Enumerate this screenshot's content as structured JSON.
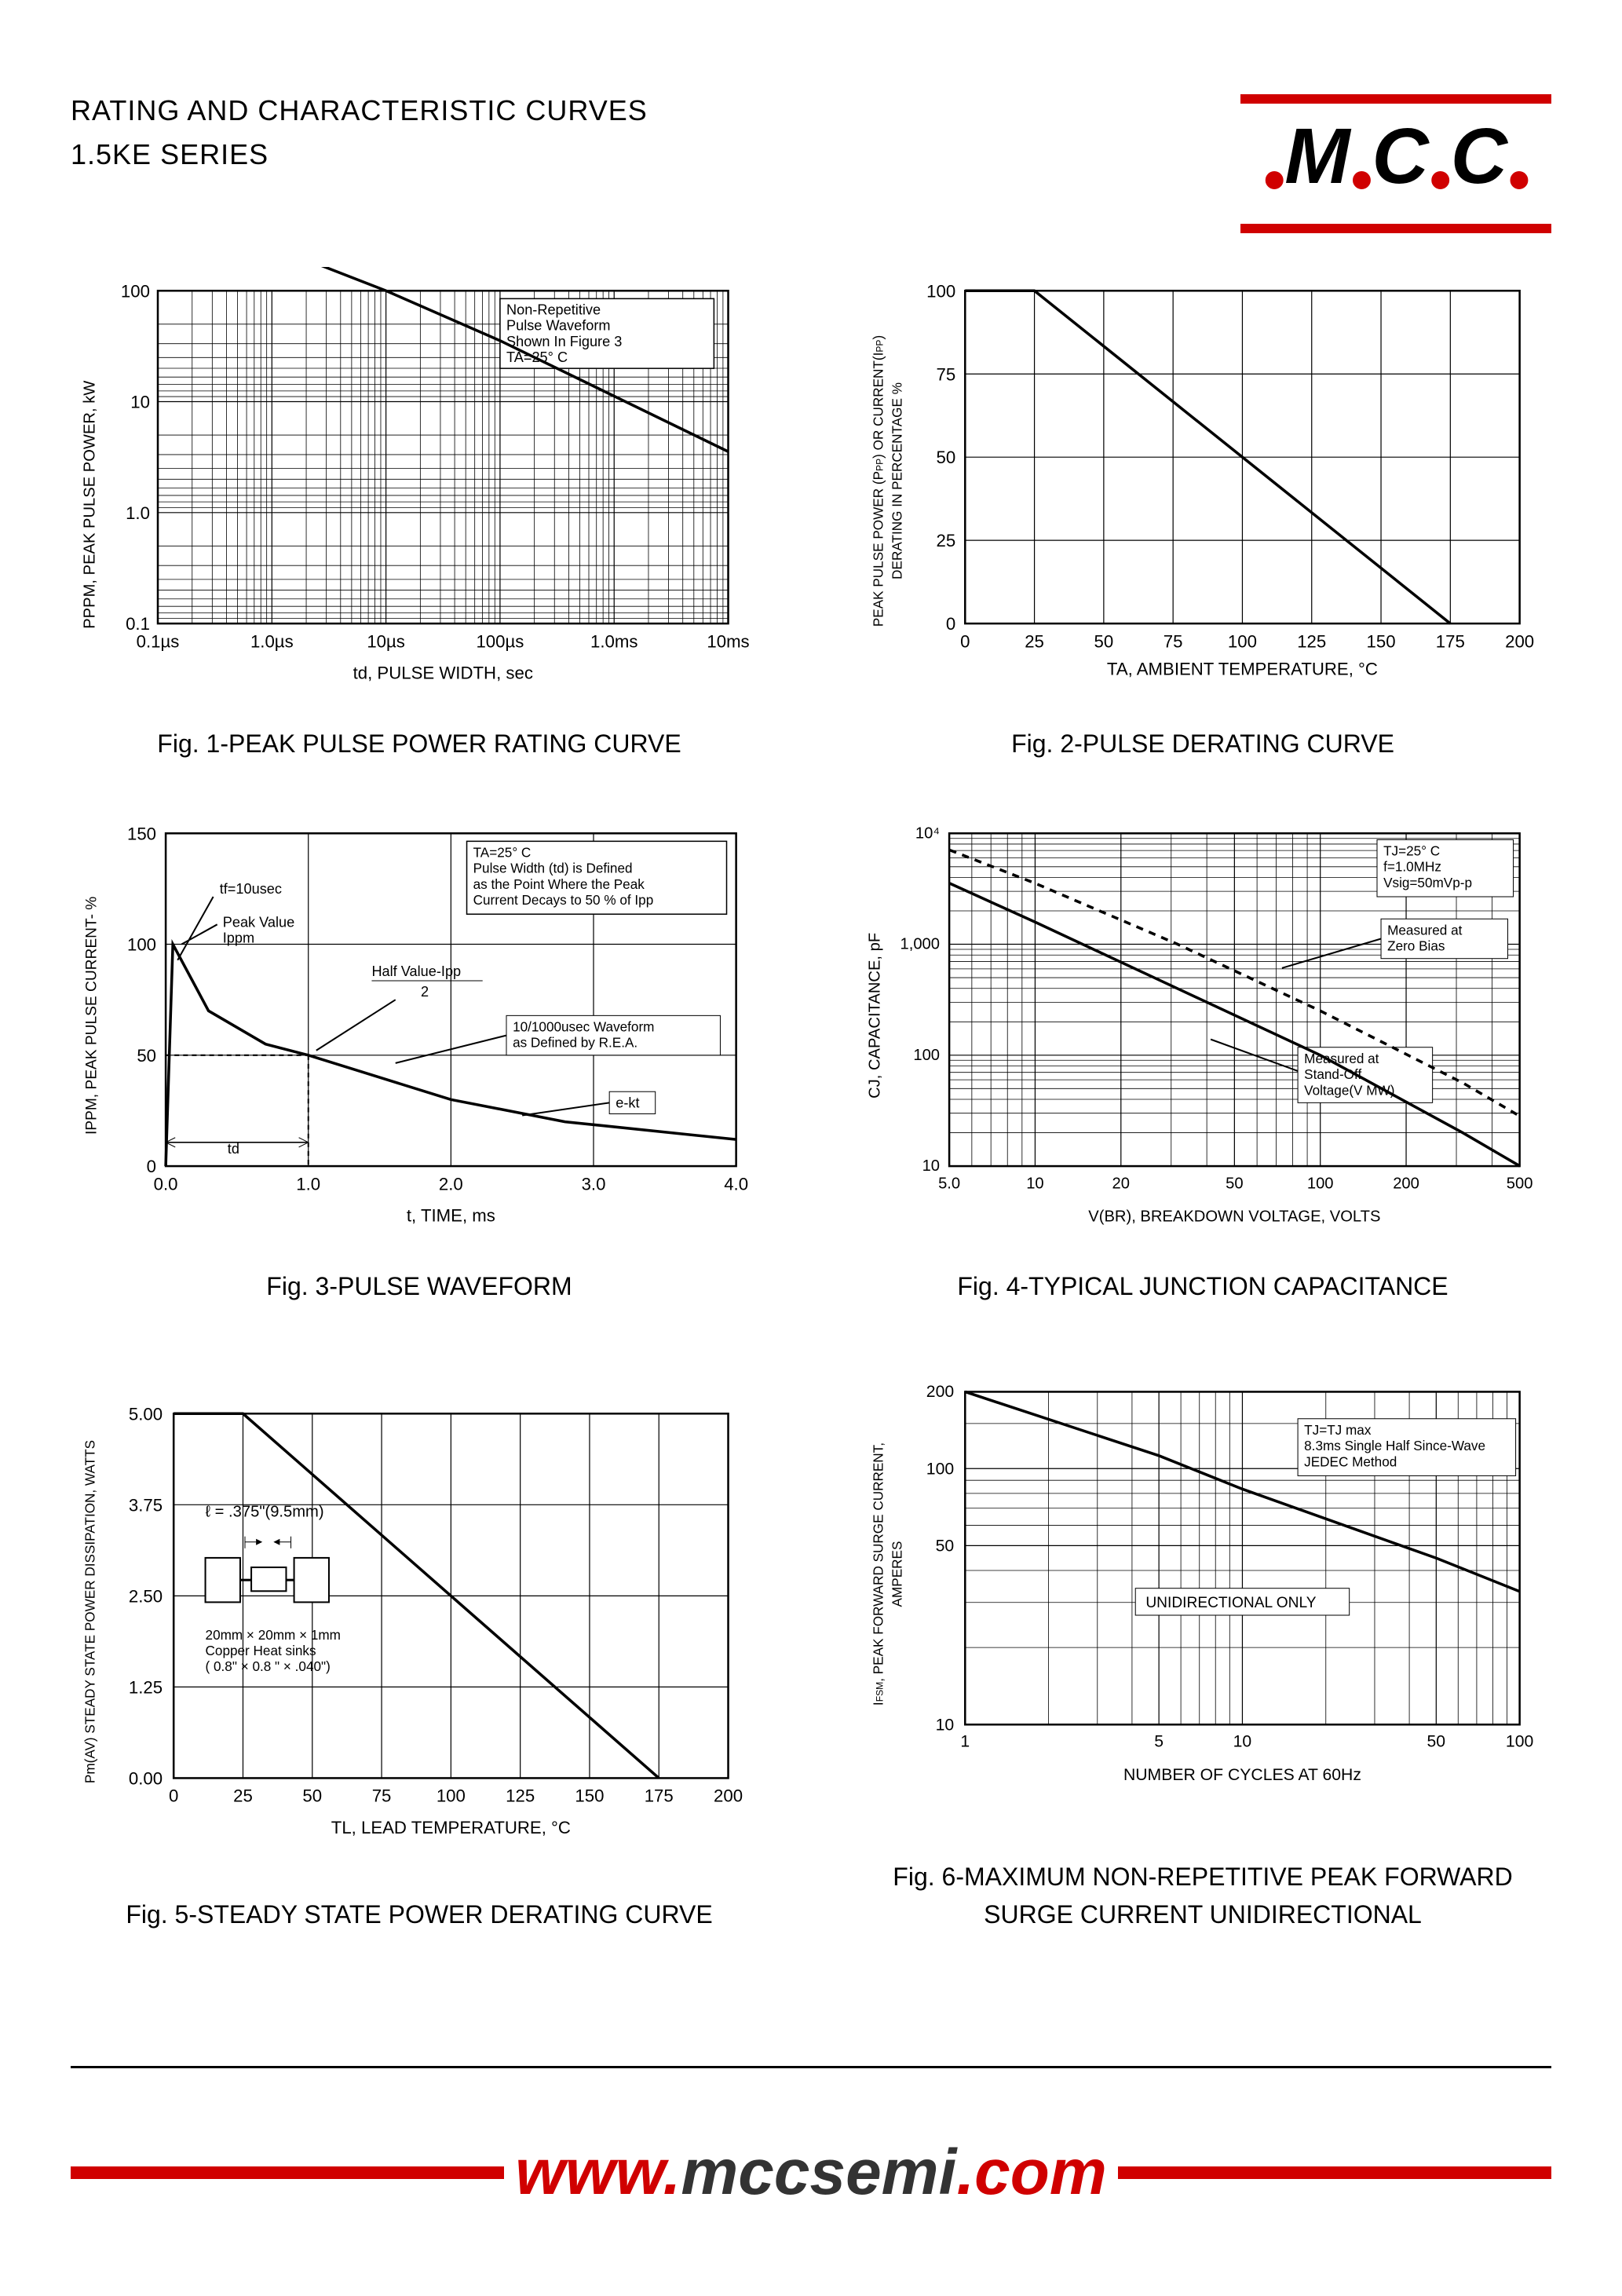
{
  "header": {
    "title1": "RATING AND CHARACTERISTIC CURVES",
    "title2": "1.5KE SERIES",
    "logo_letters": [
      "M",
      "C",
      "C"
    ],
    "logo_bar_color": "#d00000"
  },
  "footer": {
    "url_p1": "www.",
    "url_p2": "mccsemi",
    "url_p3": ".com",
    "bar_color": "#d00000"
  },
  "charts": {
    "fig1": {
      "caption": "Fig. 1-PEAK PULSE POWER RATING CURVE",
      "type": "line-loglog",
      "xlabel": "td, PULSE WIDTH, sec",
      "ylabel": "PPPM, PEAK PULSE POWER, kW",
      "xticks": [
        "0.1µs",
        "1.0µs",
        "10µs",
        "100µs",
        "1.0ms",
        "10ms"
      ],
      "yticks": [
        "0.1",
        "1.0",
        "10",
        "100"
      ],
      "note_box": [
        "Non-Repetitive",
        "Pulse Waveform",
        "Shown In Figure 3",
        "TA=25° C"
      ],
      "curve_points_log": [
        [
          0,
          2.7
        ],
        [
          1,
          2.4
        ],
        [
          2,
          2.0
        ],
        [
          3,
          1.55
        ],
        [
          4,
          1.05
        ],
        [
          5,
          0.55
        ]
      ],
      "xlim_log": [
        0,
        5
      ],
      "ylim_log": [
        -1,
        2
      ],
      "line_color": "#000000",
      "grid_color": "#000000",
      "background": "#ffffff"
    },
    "fig2": {
      "caption": "Fig. 2-PULSE DERATING CURVE",
      "type": "line",
      "xlabel": "TA, AMBIENT TEMPERATURE, °C",
      "ylabel": "PEAK PULSE POWER (PPP) OR CURRENT(IPP)\nDERATING IN PERCENTAGE %",
      "xticks": [
        0,
        25,
        50,
        75,
        100,
        125,
        150,
        175,
        200
      ],
      "yticks": [
        0,
        25,
        50,
        75,
        100
      ],
      "xlim": [
        0,
        200
      ],
      "ylim": [
        0,
        100
      ],
      "curve": [
        [
          0,
          100
        ],
        [
          25,
          100
        ],
        [
          175,
          0
        ]
      ],
      "line_color": "#000000"
    },
    "fig3": {
      "caption": "Fig. 3-PULSE WAVEFORM",
      "type": "waveform",
      "xlabel": "t, TIME, ms",
      "ylabel": "IPPM, PEAK PULSE CURRENT- %",
      "xticks": [
        0,
        1.0,
        2.0,
        3.0,
        4.0
      ],
      "yticks": [
        0,
        50,
        100,
        150
      ],
      "xlim": [
        0,
        4.0
      ],
      "ylim": [
        0,
        150
      ],
      "annotations": {
        "tf": "tf=10usec",
        "peak": "Peak Value\nIppm",
        "half": "Half Value-Ipp\n2",
        "td": "td",
        "ekt": "e-kt",
        "note_box": [
          "TA=25° C",
          "Pulse Width (td) is Defined",
          "as the Point Where the Peak",
          "Current Decays to 50 % of Ipp"
        ],
        "wave_note": "10/1000usec Waveform\nas Defined by R.E.A."
      },
      "rise": [
        [
          0,
          0
        ],
        [
          0.05,
          100
        ]
      ],
      "decay": [
        [
          0.05,
          100
        ],
        [
          0.3,
          70
        ],
        [
          0.7,
          55
        ],
        [
          1.0,
          50
        ],
        [
          1.5,
          40
        ],
        [
          2.0,
          30
        ],
        [
          2.8,
          20
        ],
        [
          4.0,
          12
        ]
      ]
    },
    "fig4": {
      "caption": "Fig. 4-TYPICAL JUNCTION CAPACITANCE",
      "type": "line-loglog",
      "xlabel": "V(BR), BREAKDOWN VOLTAGE, VOLTS",
      "ylabel": "CJ, CAPACITANCE, pF",
      "xticks": [
        "5.0",
        "10",
        "20",
        "50",
        "100",
        "200",
        "500"
      ],
      "yticks": [
        "10",
        "100",
        "1,000",
        "10⁴"
      ],
      "note_box_top": [
        "TJ=25° C",
        "f=1.0MHz",
        "Vsig=50mVp-p"
      ],
      "label_zero": "Measured at\nZero Bias",
      "label_standoff": "Measured at\nStand-Off\nVoltage(V MW)",
      "series": [
        {
          "name": "zero_bias",
          "dash": "6,6",
          "points_log": [
            [
              0.7,
              3.85
            ],
            [
              1.0,
              3.55
            ],
            [
              1.5,
              3.0
            ],
            [
              2.0,
              2.4
            ],
            [
              2.5,
              1.75
            ],
            [
              2.7,
              1.45
            ]
          ]
        },
        {
          "name": "standoff",
          "dash": "0",
          "points_log": [
            [
              0.7,
              3.55
            ],
            [
              1.0,
              3.2
            ],
            [
              1.5,
              2.6
            ],
            [
              2.0,
              2.0
            ],
            [
              2.5,
              1.3
            ],
            [
              2.7,
              1.0
            ]
          ]
        }
      ],
      "xlim_log": [
        0.699,
        2.699
      ],
      "ylim_log": [
        1,
        4
      ]
    },
    "fig5": {
      "caption": "Fig. 5-STEADY STATE POWER DERATING CURVE",
      "type": "line",
      "xlabel": "TL, LEAD TEMPERATURE, °C",
      "ylabel": "Pm(AV) STEADY STATE POWER DISSIPATION, WATTS",
      "xticks": [
        0,
        25,
        50,
        75,
        100,
        125,
        150,
        175,
        200
      ],
      "yticks": [
        0,
        1.25,
        2.5,
        3.75,
        5.0
      ],
      "xlim": [
        0,
        200
      ],
      "ylim": [
        0,
        5.0
      ],
      "curve": [
        [
          0,
          5.0
        ],
        [
          25,
          5.0
        ],
        [
          175,
          0
        ]
      ],
      "inset_label": "ℓ = .375\"(9.5mm)",
      "inset_note": "20mm × 20mm × 1mm\nCopper Heat sinks\n( 0.8\" × 0.8 \" × .040\")"
    },
    "fig6": {
      "caption": "Fig. 6-MAXIMUM NON-REPETITIVE PEAK FORWARD\nSURGE CURRENT UNIDIRECTIONAL",
      "type": "line-loglog",
      "xlabel": "NUMBER OF CYCLES AT 60Hz",
      "ylabel": "IFSM, PEAK FORWARD SURGE CURRENT,\nAMPERES",
      "xticks": [
        "1",
        "5",
        "10",
        "50",
        "100"
      ],
      "yticks": [
        "10",
        "50",
        "100",
        "200"
      ],
      "note_box": [
        "TJ=TJ max",
        "8.3ms Single Half Since-Wave",
        "JEDEC Method"
      ],
      "center_label": "UNIDIRECTIONAL ONLY",
      "curve_points_log": [
        [
          0,
          2.3
        ],
        [
          0.7,
          2.05
        ],
        [
          1.0,
          1.92
        ],
        [
          1.7,
          1.65
        ],
        [
          2.0,
          1.52
        ]
      ],
      "xlim_log": [
        0,
        2
      ],
      "ylim_log": [
        1,
        2.3
      ]
    }
  }
}
